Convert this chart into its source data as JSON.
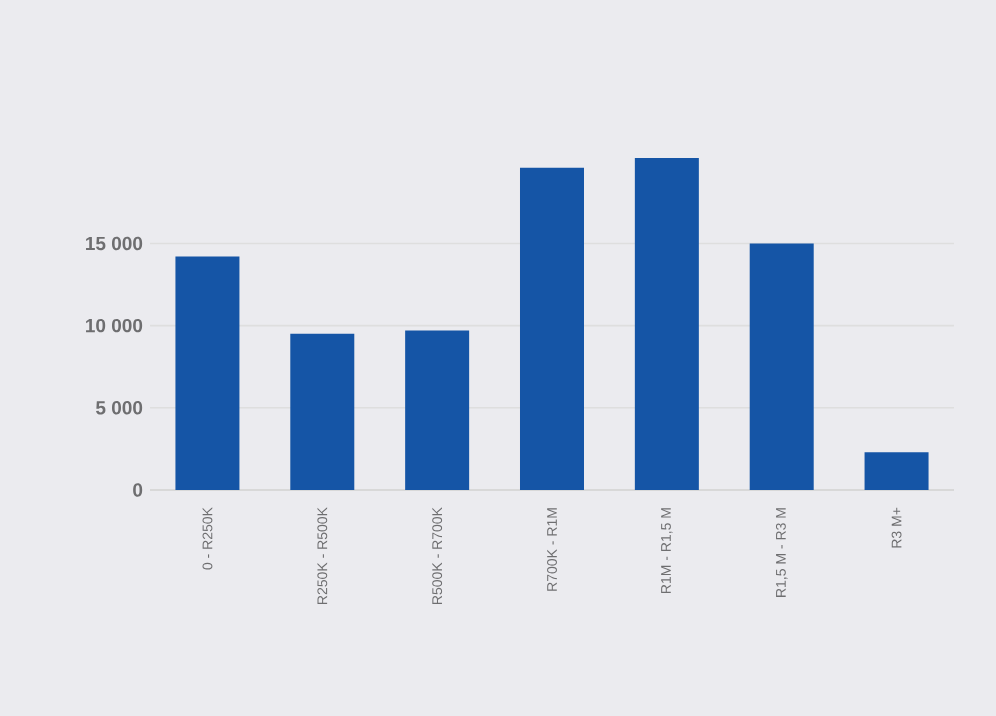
{
  "chart_data": {
    "type": "bar",
    "categories": [
      "0 - R250K",
      "R250K - R500K",
      "R500K - R700K",
      "R700K - R1M",
      "R1M - R1,5 M",
      "R1,5 M - R3 M",
      "R3 M+"
    ],
    "values": [
      14200,
      9500,
      9700,
      19600,
      20200,
      15000,
      2300
    ],
    "color": "#1555a6",
    "ylim": [
      0,
      20200
    ],
    "yticks": [
      {
        "value": 0,
        "label": "0"
      },
      {
        "value": 5000,
        "label": "5 000"
      },
      {
        "value": 10000,
        "label": "10 000"
      },
      {
        "value": 15000,
        "label": "15 000"
      }
    ],
    "grid": "y"
  }
}
